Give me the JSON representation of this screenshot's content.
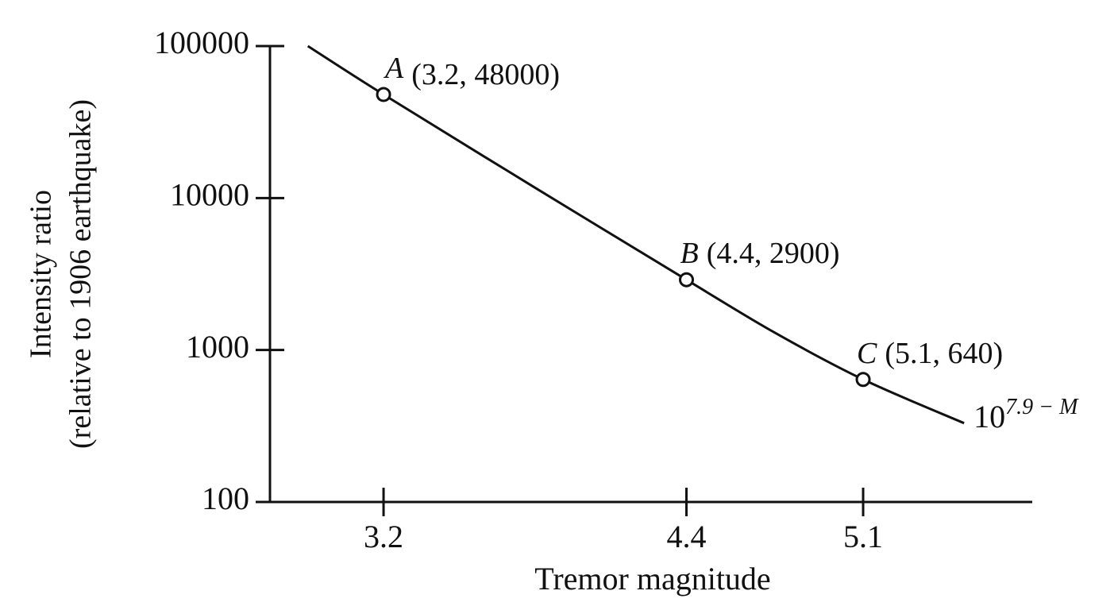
{
  "chart_data": {
    "type": "line",
    "x_label": "Tremor magnitude",
    "y_label": [
      "Intensity  ratio",
      "(relative to 1906 earthquake)"
    ],
    "xlim": [
      2.75,
      5.77
    ],
    "xticks": [
      3.2,
      4.4,
      5.1
    ],
    "ylim": [
      100,
      100000
    ],
    "yticks": [
      100,
      1000,
      10000,
      100000
    ],
    "y_scale": "log",
    "series": [
      {
        "name": "10^(7.9 − M)",
        "color": "#111111",
        "style": "curve",
        "x": [
          2.9,
          3.2,
          3.8,
          4.4,
          4.75,
          5.1,
          5.5
        ],
        "values": [
          100000,
          48000,
          11700,
          2900,
          1300,
          640,
          330
        ]
      },
      {
        "color": "#111111",
        "style": "points",
        "x": [
          3.2,
          4.4,
          5.1
        ],
        "values": [
          48000,
          2900,
          640
        ],
        "point_labels": [
          "A",
          "B",
          "C"
        ],
        "value_labels": [
          "(3.2, 48000)",
          "(4.4, 2900)",
          "(5.1, 640)"
        ]
      }
    ],
    "curve_label": {
      "base": "10",
      "exponent": "7.9 − M"
    }
  }
}
